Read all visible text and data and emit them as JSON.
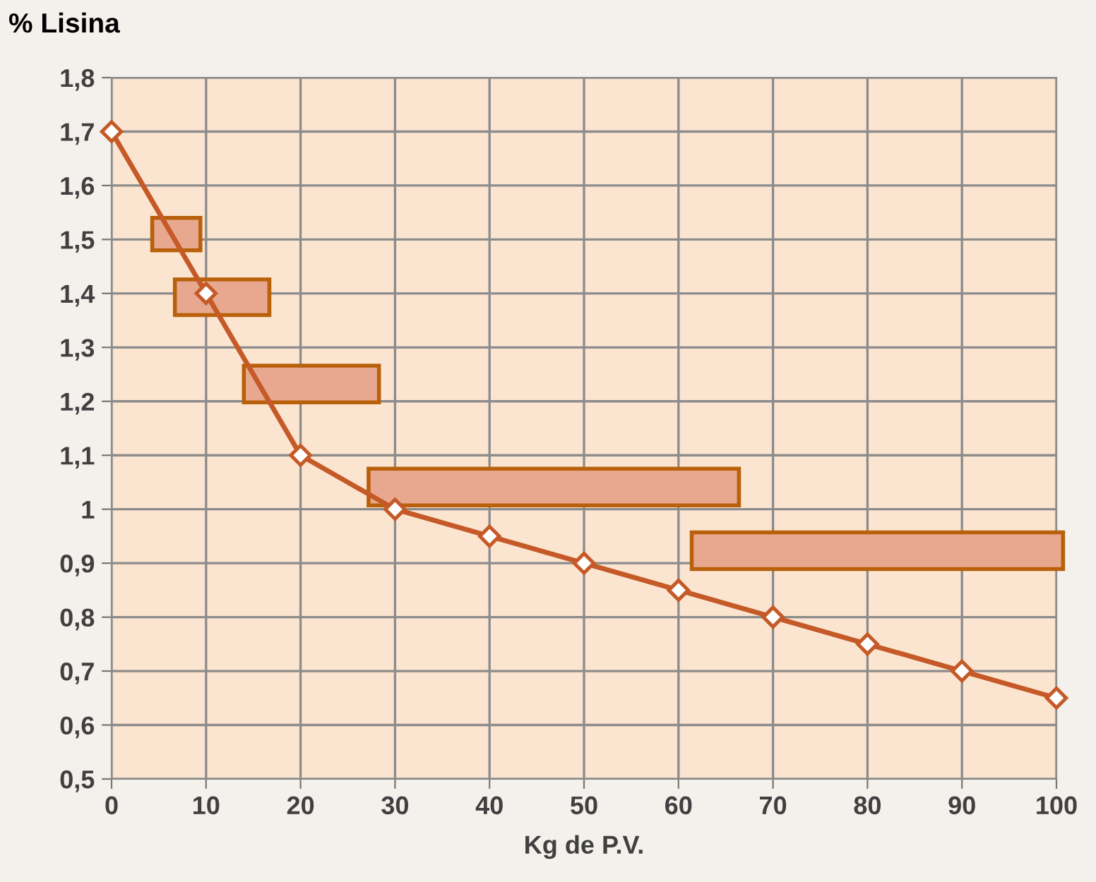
{
  "chart_data": {
    "type": "line",
    "ylabel": "% Lisina",
    "xlabel": "Kg de P.V.",
    "x": [
      0,
      10,
      20,
      30,
      40,
      50,
      60,
      70,
      80,
      90,
      100
    ],
    "series": [
      {
        "color": "#c55a28",
        "values": [
          1.7,
          1.4,
          1.1,
          1.0,
          0.95,
          0.9,
          0.85,
          0.8,
          0.75,
          0.7,
          0.65
        ]
      }
    ],
    "xlim": [
      0,
      100
    ],
    "xticks": [
      0,
      10,
      20,
      30,
      40,
      50,
      60,
      70,
      80,
      90,
      100
    ],
    "ylim": [
      0.5,
      1.8
    ],
    "yticks": [
      {
        "value": 0.5,
        "label": "0,5"
      },
      {
        "value": 0.6,
        "label": "0,6"
      },
      {
        "value": 0.7,
        "label": "0,7"
      },
      {
        "value": 0.8,
        "label": "0,8"
      },
      {
        "value": 0.9,
        "label": "0,9"
      },
      {
        "value": 1,
        "label": "1"
      },
      {
        "value": 1.1,
        "label": "1,1"
      },
      {
        "value": 1.2,
        "label": "1,2"
      },
      {
        "value": 1.3,
        "label": "1,3"
      },
      {
        "value": 1.4,
        "label": "1,4"
      },
      {
        "value": 1.5,
        "label": "1,5"
      },
      {
        "value": 1.6,
        "label": "1,6"
      },
      {
        "value": 1.7,
        "label": "1,7"
      },
      {
        "value": 1.8,
        "label": "1,8"
      }
    ],
    "grid": true,
    "marker": "diamond",
    "line_style": "solid"
  }
}
